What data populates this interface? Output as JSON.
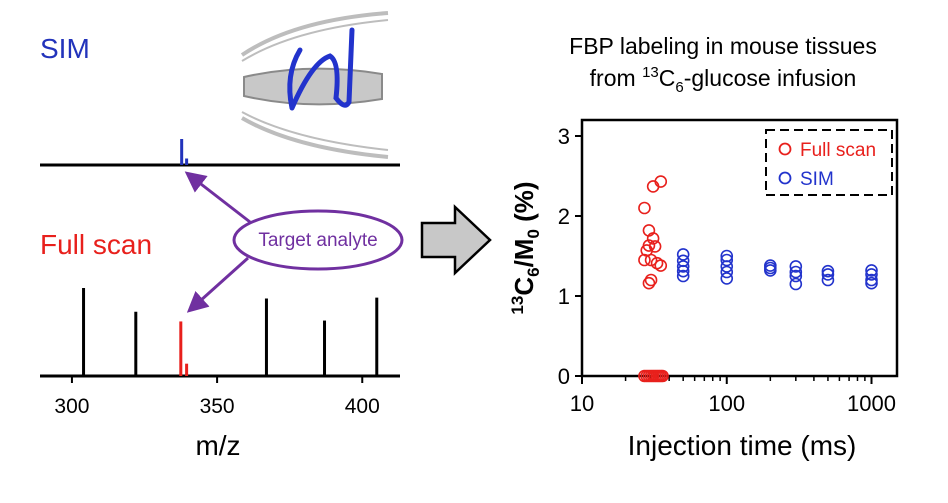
{
  "left_panel": {
    "sim_label": "SIM",
    "full_scan_label": "Full scan",
    "callout_label": "Target analyte",
    "x_axis": {
      "label": "m/z",
      "ticks": [
        300,
        350,
        400
      ],
      "range": [
        289,
        413
      ]
    },
    "sim_spectrum": [
      {
        "mz": 337.8,
        "rel": 1.0
      },
      {
        "mz": 339.5,
        "rel": 0.25
      }
    ],
    "full_scan_spectrum": [
      {
        "mz": 304,
        "rel": 1.0,
        "target": false
      },
      {
        "mz": 322,
        "rel": 0.73,
        "target": false
      },
      {
        "mz": 337.5,
        "rel": 0.62,
        "target": true
      },
      {
        "mz": 339.5,
        "rel": 0.14,
        "target": true
      },
      {
        "mz": 367,
        "rel": 0.88,
        "target": false
      },
      {
        "mz": 387,
        "rel": 0.63,
        "target": false
      },
      {
        "mz": 405,
        "rel": 0.89,
        "target": false
      }
    ]
  },
  "colors": {
    "sim": "#2233bb",
    "full_scan": "#e8201c",
    "callout": "#7030a0",
    "orbitrap": "#c8c8c8",
    "arrow_fill": "#c8c8c8"
  },
  "chart_data": {
    "type": "scatter",
    "title": "FBP labeling in mouse tissues",
    "title_line2_prefix": "from ",
    "title_line2_sup": "13",
    "title_line2_base": "C",
    "title_line2_sub": "6",
    "title_line2_suffix": "-glucose infusion",
    "xlabel": "Injection time (ms)",
    "ylabel_sup": "13",
    "ylabel_base": "C",
    "ylabel_sub": "6",
    "ylabel_mid": "/M",
    "ylabel_sub2": "0",
    "ylabel_suffix": " (%)",
    "x_scale": "log",
    "xlim": [
      10,
      1500
    ],
    "ylim": [
      0,
      3.2
    ],
    "x_ticks": [
      10,
      100,
      1000
    ],
    "x_tick_labels": [
      "10",
      "100",
      "1000"
    ],
    "y_ticks": [
      0,
      1,
      2,
      3
    ],
    "y_tick_labels": [
      "0",
      "1",
      "2",
      "3"
    ],
    "legend": {
      "position": "top-right",
      "style": "dashed box"
    },
    "series": [
      {
        "name": "Full scan",
        "color": "#e8201c",
        "points": [
          [
            27,
            0
          ],
          [
            28,
            0
          ],
          [
            29,
            0
          ],
          [
            30,
            0
          ],
          [
            31,
            0
          ],
          [
            32,
            0
          ],
          [
            33,
            0
          ],
          [
            34,
            0
          ],
          [
            35,
            0
          ],
          [
            36,
            0
          ],
          [
            27,
            2.1
          ],
          [
            31,
            2.37
          ],
          [
            35,
            2.43
          ],
          [
            29,
            1.82
          ],
          [
            29,
            1.63
          ],
          [
            28,
            1.57
          ],
          [
            27,
            1.45
          ],
          [
            30,
            1.45
          ],
          [
            33,
            1.41
          ],
          [
            35,
            1.38
          ],
          [
            31,
            1.72
          ],
          [
            32,
            1.62
          ],
          [
            29,
            1.16
          ],
          [
            30,
            1.2
          ]
        ]
      },
      {
        "name": "SIM",
        "color": "#2233cc",
        "points": [
          [
            50,
            1.52
          ],
          [
            50,
            1.44
          ],
          [
            50,
            1.37
          ],
          [
            50,
            1.31
          ],
          [
            50,
            1.25
          ],
          [
            100,
            1.5
          ],
          [
            100,
            1.45
          ],
          [
            100,
            1.37
          ],
          [
            100,
            1.3
          ],
          [
            100,
            1.22
          ],
          [
            200,
            1.38
          ],
          [
            200,
            1.35
          ],
          [
            200,
            1.32
          ],
          [
            300,
            1.37
          ],
          [
            300,
            1.3
          ],
          [
            300,
            1.25
          ],
          [
            300,
            1.15
          ],
          [
            500,
            1.31
          ],
          [
            500,
            1.27
          ],
          [
            500,
            1.2
          ],
          [
            1000,
            1.32
          ],
          [
            1000,
            1.27
          ],
          [
            1000,
            1.2
          ],
          [
            1000,
            1.16
          ]
        ]
      }
    ]
  }
}
